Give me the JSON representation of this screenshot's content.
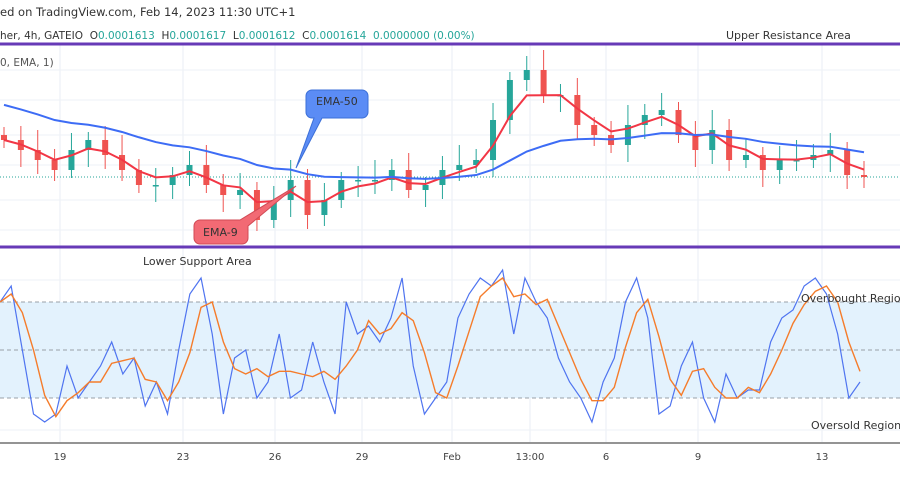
{
  "header": {
    "published": "ed on TradingView.com, Feb 14, 2023 11:30 UTC+1"
  },
  "legend": {
    "symbol": "her, 4h, GATEIO",
    "open_label": "O",
    "open": "0.0001613",
    "high_label": "H",
    "high": "0.0001617",
    "low_label": "L",
    "low": "0.0001612",
    "close_label": "C",
    "close": "0.0001614",
    "change": "0.0000000 (0.00%)",
    "indicator": "0, EMA, 1)"
  },
  "annotations": {
    "upper": "Upper Resistance Area",
    "lower": "Lower Support Area",
    "ema50": "EMA-50",
    "ema9": "EMA-9",
    "overbought": "Overbought Region",
    "oversold": "Oversold Region"
  },
  "colors": {
    "up": "#26a69a",
    "down": "#ef5350",
    "ema9": "#f23645",
    "ema50": "#3d6cf5",
    "stoch_k": "#4f74f0",
    "stoch_d": "#f57c2b",
    "zone": "#673ab7",
    "band": "#e3f2fd",
    "ema50_callout": "#5b8cf5",
    "ema9_callout": "#f26a74"
  },
  "chart_data": [
    {
      "type": "candlestick",
      "timeframe": "4h",
      "x_ticks": [
        "19",
        "23",
        "26",
        "29",
        "Feb",
        "13:00",
        "6",
        "9",
        "13"
      ],
      "closes": [
        0.0001651,
        0.0001641,
        0.0001631,
        0.0001621,
        0.0001641,
        0.0001651,
        0.0001636,
        0.0001621,
        0.0001606,
        0.0001606,
        0.0001616,
        0.0001626,
        0.0001606,
        0.0001596,
        0.0001601,
        0.0001571,
        0.0001591,
        0.0001611,
        0.0001576,
        0.0001591,
        0.0001611,
        0.0001611,
        0.0001611,
        0.0001621,
        0.0001601,
        0.0001606,
        0.0001621,
        0.0001626,
        0.0001631,
        0.0001671,
        0.0001711,
        0.0001721,
        0.0001696,
        0.0001696,
        0.0001666,
        0.0001656,
        0.0001646,
        0.0001666,
        0.0001676,
        0.0001681,
        0.0001656,
        0.0001641,
        0.0001661,
        0.0001631,
        0.0001636,
        0.0001621,
        0.0001631,
        0.0001631,
        0.0001636,
        0.0001641,
        0.0001616,
        0.0001614
      ],
      "current_price": 0.0001614,
      "upper_resistance": 0.0001747,
      "lower_support": 0.0001544,
      "indicators": [
        "EMA-9",
        "EMA-50"
      ]
    },
    {
      "type": "line",
      "indicator": "Stochastic",
      "ylim": [
        0,
        100
      ],
      "levels": [
        80,
        50,
        20
      ],
      "k": [
        80,
        90,
        50,
        10,
        5,
        10,
        40,
        20,
        30,
        40,
        55,
        35,
        45,
        15,
        30,
        10,
        50,
        85,
        95,
        60,
        10,
        45,
        50,
        20,
        30,
        60,
        20,
        25,
        55,
        30,
        10,
        80,
        60,
        65,
        55,
        70,
        95,
        40,
        10,
        20,
        30,
        70,
        85,
        95,
        90,
        100,
        60,
        95,
        80,
        70,
        45,
        30,
        20,
        5,
        30,
        45,
        80,
        95,
        70,
        10,
        15,
        40,
        55,
        20,
        5,
        35,
        20,
        25,
        25,
        55,
        70,
        75,
        90,
        95,
        85,
        60,
        20,
        30
      ],
      "d_smoothing": 3
    }
  ]
}
